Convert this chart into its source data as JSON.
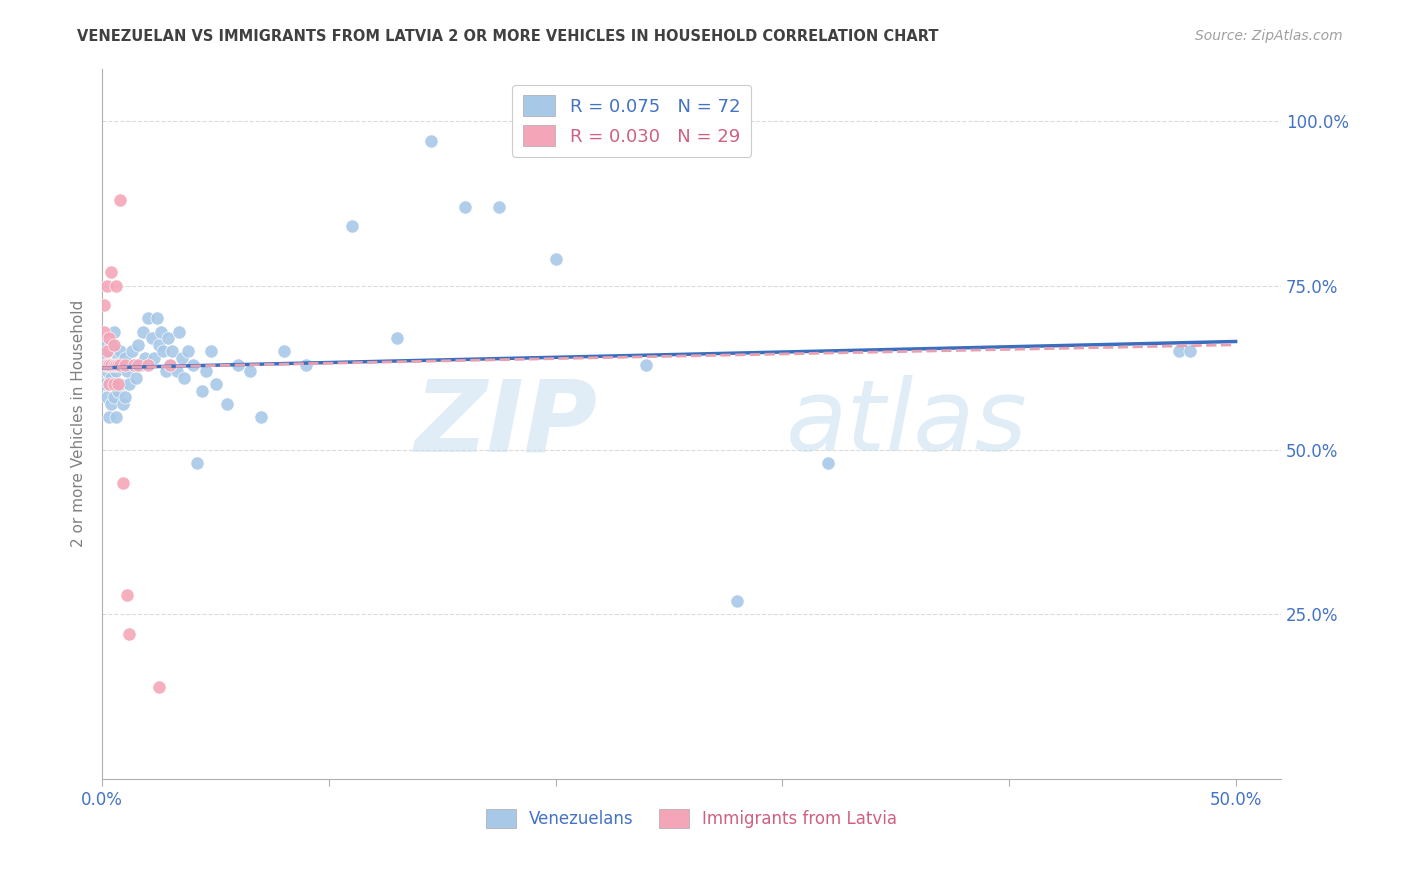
{
  "title": "VENEZUELAN VS IMMIGRANTS FROM LATVIA 2 OR MORE VEHICLES IN HOUSEHOLD CORRELATION CHART",
  "source": "Source: ZipAtlas.com",
  "ylabel": "2 or more Vehicles in Household",
  "watermark_zip": "ZIP",
  "watermark_atlas": "atlas",
  "legend_blue_R": "0.075",
  "legend_blue_N": "72",
  "legend_pink_R": "0.030",
  "legend_pink_N": "29",
  "legend_blue_label": "Venezuelans",
  "legend_pink_label": "Immigrants from Latvia",
  "blue_scatter_color": "#a8c8e8",
  "pink_scatter_color": "#f4a6b8",
  "blue_line_color": "#3a6fbf",
  "pink_line_color": "#e8a0b0",
  "legend_blue_text_color": "#4472c4",
  "legend_pink_text_color": "#d06080",
  "axis_label_color": "#4472c4",
  "ylabel_color": "#808080",
  "title_color": "#404040",
  "source_color": "#a0a0a0",
  "grid_color": "#d8d8d8",
  "background_color": "#ffffff",
  "xlim": [
    0.0,
    0.52
  ],
  "ylim": [
    0.0,
    1.08
  ],
  "ven_x": [
    0.001,
    0.001,
    0.002,
    0.002,
    0.002,
    0.003,
    0.003,
    0.003,
    0.004,
    0.004,
    0.004,
    0.005,
    0.005,
    0.005,
    0.006,
    0.006,
    0.007,
    0.007,
    0.008,
    0.008,
    0.009,
    0.009,
    0.01,
    0.01,
    0.011,
    0.012,
    0.013,
    0.014,
    0.015,
    0.016,
    0.017,
    0.018,
    0.019,
    0.02,
    0.022,
    0.023,
    0.024,
    0.025,
    0.026,
    0.027,
    0.028,
    0.029,
    0.03,
    0.031,
    0.033,
    0.034,
    0.035,
    0.036,
    0.038,
    0.04,
    0.042,
    0.044,
    0.046,
    0.048,
    0.05,
    0.055,
    0.06,
    0.065,
    0.07,
    0.08,
    0.09,
    0.11,
    0.13,
    0.145,
    0.16,
    0.175,
    0.2,
    0.24,
    0.28,
    0.32,
    0.475,
    0.48
  ],
  "ven_y": [
    0.6,
    0.64,
    0.58,
    0.62,
    0.66,
    0.55,
    0.6,
    0.65,
    0.57,
    0.61,
    0.66,
    0.58,
    0.63,
    0.68,
    0.55,
    0.62,
    0.59,
    0.64,
    0.6,
    0.65,
    0.57,
    0.63,
    0.58,
    0.64,
    0.62,
    0.6,
    0.65,
    0.63,
    0.61,
    0.66,
    0.63,
    0.68,
    0.64,
    0.7,
    0.67,
    0.64,
    0.7,
    0.66,
    0.68,
    0.65,
    0.62,
    0.67,
    0.63,
    0.65,
    0.62,
    0.68,
    0.64,
    0.61,
    0.65,
    0.63,
    0.48,
    0.59,
    0.62,
    0.65,
    0.6,
    0.57,
    0.63,
    0.62,
    0.55,
    0.65,
    0.63,
    0.84,
    0.67,
    0.97,
    0.87,
    0.87,
    0.79,
    0.63,
    0.27,
    0.48,
    0.65,
    0.65
  ],
  "lat_x": [
    0.001,
    0.001,
    0.001,
    0.002,
    0.002,
    0.002,
    0.003,
    0.003,
    0.003,
    0.004,
    0.004,
    0.005,
    0.005,
    0.005,
    0.006,
    0.006,
    0.007,
    0.007,
    0.008,
    0.008,
    0.009,
    0.01,
    0.011,
    0.012,
    0.014,
    0.016,
    0.02,
    0.025,
    0.03
  ],
  "lat_y": [
    0.63,
    0.68,
    0.72,
    0.63,
    0.65,
    0.75,
    0.6,
    0.63,
    0.67,
    0.63,
    0.77,
    0.6,
    0.63,
    0.66,
    0.63,
    0.75,
    0.6,
    0.63,
    0.88,
    0.63,
    0.45,
    0.63,
    0.28,
    0.22,
    0.63,
    0.63,
    0.63,
    0.14,
    0.63
  ]
}
